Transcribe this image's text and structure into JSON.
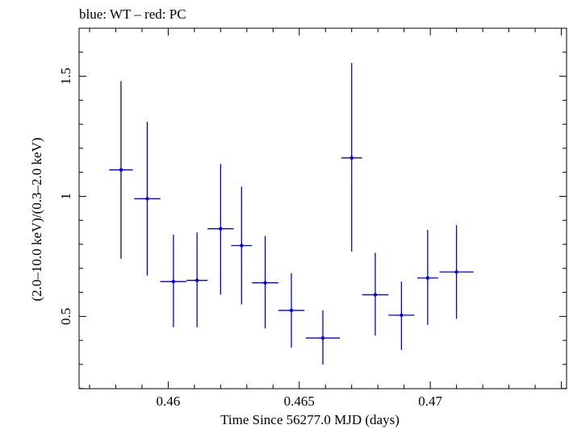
{
  "chart_data": {
    "type": "scatter",
    "title": "blue: WT – red: PC",
    "xlabel": "Time Since 56277.0 MJD (days)",
    "ylabel": "(2.0–10.0 keV)/(0.3–2.0 keV)",
    "xlim": [
      0.4566,
      0.4752
    ],
    "ylim": [
      0.199,
      1.7
    ],
    "x_ticks": [
      {
        "value": 0.46,
        "label": "0.46"
      },
      {
        "value": 0.465,
        "label": "0.465"
      },
      {
        "value": 0.47,
        "label": "0.47"
      }
    ],
    "y_ticks": [
      {
        "value": 0.5,
        "label": "0.5"
      },
      {
        "value": 1,
        "label": "1"
      },
      {
        "value": 1.5,
        "label": "1.5"
      }
    ],
    "series": [
      {
        "color": "#0000e6",
        "points": [
          {
            "x": 0.4582,
            "y": 1.11,
            "xerr": 0.00045,
            "ylo": 0.74,
            "yhi": 1.48
          },
          {
            "x": 0.4592,
            "y": 0.99,
            "xerr": 0.0005,
            "ylo": 0.67,
            "yhi": 1.31
          },
          {
            "x": 0.4602,
            "y": 0.645,
            "xerr": 0.0005,
            "ylo": 0.455,
            "yhi": 0.84
          },
          {
            "x": 0.4611,
            "y": 0.65,
            "xerr": 0.0004,
            "ylo": 0.455,
            "yhi": 0.85
          },
          {
            "x": 0.462,
            "y": 0.865,
            "xerr": 0.0005,
            "ylo": 0.59,
            "yhi": 1.135
          },
          {
            "x": 0.4628,
            "y": 0.795,
            "xerr": 0.0004,
            "ylo": 0.55,
            "yhi": 1.04
          },
          {
            "x": 0.4637,
            "y": 0.64,
            "xerr": 0.0005,
            "ylo": 0.45,
            "yhi": 0.835
          },
          {
            "x": 0.4647,
            "y": 0.525,
            "xerr": 0.0005,
            "ylo": 0.37,
            "yhi": 0.68
          },
          {
            "x": 0.4659,
            "y": 0.41,
            "xerr": 0.00065,
            "ylo": 0.3,
            "yhi": 0.525
          },
          {
            "x": 0.467,
            "y": 1.16,
            "xerr": 0.0004,
            "ylo": 0.77,
            "yhi": 1.555
          },
          {
            "x": 0.4679,
            "y": 0.59,
            "xerr": 0.0005,
            "ylo": 0.42,
            "yhi": 0.765
          },
          {
            "x": 0.4689,
            "y": 0.505,
            "xerr": 0.0005,
            "ylo": 0.36,
            "yhi": 0.645
          },
          {
            "x": 0.4699,
            "y": 0.66,
            "xerr": 0.0004,
            "ylo": 0.465,
            "yhi": 0.86
          },
          {
            "x": 0.471,
            "y": 0.685,
            "xerr": 0.00065,
            "ylo": 0.49,
            "yhi": 0.88
          }
        ]
      }
    ]
  }
}
